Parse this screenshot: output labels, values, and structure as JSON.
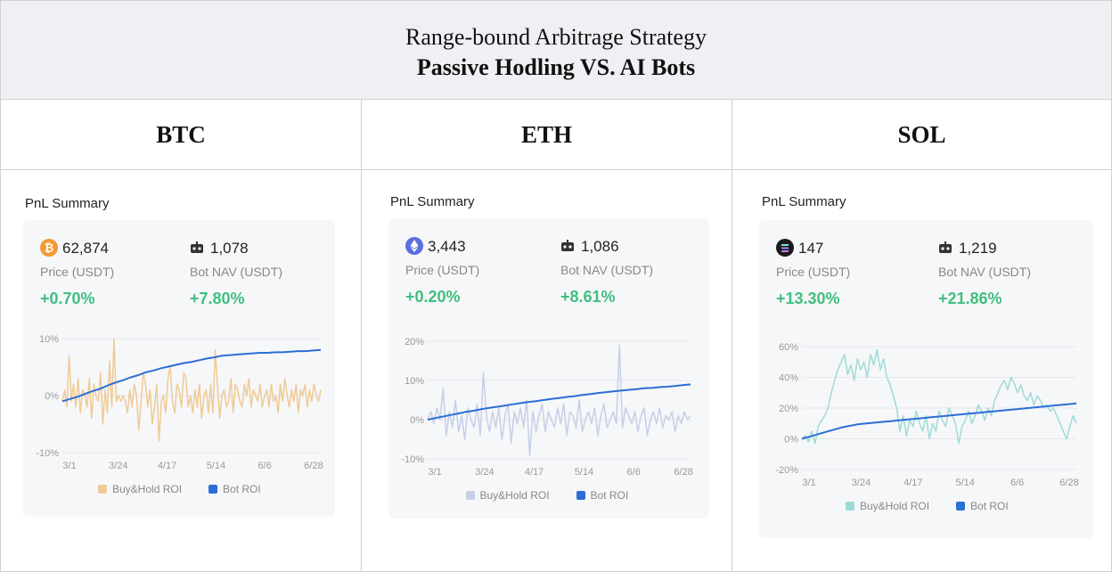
{
  "header": {
    "title": "Range-bound Arbitrage Strategy",
    "subtitle": "Passive Hodling VS. AI Bots"
  },
  "columns": [
    {
      "name": "BTC",
      "summary_title": "PnL Summary",
      "icon": "bitcoin-icon",
      "coin_color": "#f29a33",
      "price": "62,874",
      "price_label": "Price (USDT)",
      "price_change": "+0.70%",
      "bot_nav": "1,078",
      "bot_label": "Bot NAV (USDT)",
      "bot_change": "+7.80%"
    },
    {
      "name": "ETH",
      "summary_title": "PnL Summary",
      "icon": "ethereum-icon",
      "coin_color": "#5a6fe0",
      "price": "3,443",
      "price_label": "Price (USDT)",
      "price_change": "+0.20%",
      "bot_nav": "1,086",
      "bot_label": "Bot NAV (USDT)",
      "bot_change": "+8.61%"
    },
    {
      "name": "SOL",
      "summary_title": "PnL Summary",
      "icon": "solana-icon",
      "coin_color": "#1a1a1a",
      "price": "147",
      "price_label": "Price (USDT)",
      "price_change": "+13.30%",
      "bot_nav": "1,219",
      "bot_label": "Bot NAV (USDT)",
      "bot_change": "+21.86%"
    }
  ],
  "chart_data": [
    {
      "type": "line",
      "title": "BTC",
      "x_ticks": [
        "3/1",
        "3/24",
        "4/17",
        "5/14",
        "6/6",
        "6/28"
      ],
      "y_ticks": [
        "10%",
        "0%",
        "-10%"
      ],
      "ylim": [
        -10,
        10
      ],
      "grid": true,
      "legend": "bottom",
      "series": [
        {
          "name": "Buy&Hold ROI",
          "color": "#efcb95",
          "values": [
            -1,
            1,
            -2,
            7,
            -1,
            2,
            -2,
            3,
            -3,
            1,
            0,
            -2,
            3,
            -4,
            2,
            0,
            -1,
            4,
            -5,
            1,
            -3,
            6,
            -2,
            10,
            -1,
            0,
            -1,
            0,
            -1,
            -3,
            1,
            -2,
            2,
            0,
            -6,
            -1,
            4,
            2,
            -2,
            1,
            -5,
            -2,
            2,
            -8,
            -1,
            0,
            -3,
            3,
            5,
            -1,
            -3,
            2,
            1,
            -2,
            4,
            3,
            -2,
            0,
            -3,
            1,
            -2,
            2,
            -4,
            0,
            1,
            -3,
            2,
            -3,
            8,
            2,
            -4,
            0,
            1,
            -2,
            -1,
            3,
            -3,
            2,
            1,
            -1,
            -2,
            2,
            0,
            3,
            -2,
            1,
            0,
            -1,
            2,
            -2,
            0,
            1,
            -2,
            2,
            -1,
            0,
            -3,
            2,
            -1,
            3,
            0,
            -2,
            1,
            -1,
            2,
            -3,
            1,
            0,
            2,
            -2,
            1,
            -1,
            2,
            0,
            -1,
            1
          ]
        },
        {
          "name": "Bot ROI",
          "color": "#2b6ed6",
          "values": [
            -1,
            -0.6,
            -0.2,
            0.3,
            0.8,
            1.2,
            1.8,
            2.3,
            2.7,
            3.2,
            3.6,
            4.1,
            4.4,
            4.8,
            5.1,
            5.4,
            5.7,
            5.9,
            6.2,
            6.5,
            6.7,
            7.0,
            7.1,
            7.2,
            7.3,
            7.4,
            7.5,
            7.5,
            7.6,
            7.6,
            7.7,
            7.8,
            7.8,
            7.9,
            8.0
          ]
        }
      ]
    },
    {
      "type": "line",
      "title": "ETH",
      "x_ticks": [
        "3/1",
        "3/24",
        "4/17",
        "5/14",
        "6/6",
        "6/28"
      ],
      "y_ticks": [
        "20%",
        "10%",
        "0%",
        "-10%"
      ],
      "ylim": [
        -10,
        20
      ],
      "grid": true,
      "legend": "bottom",
      "series": [
        {
          "name": "Buy&Hold ROI",
          "color": "#c5cfe8",
          "values": [
            0,
            2,
            -1,
            3,
            0,
            8,
            -4,
            2,
            -2,
            5,
            -3,
            1,
            -5,
            3,
            0,
            -2,
            4,
            -4,
            12,
            1,
            -3,
            2,
            -2,
            3,
            -5,
            1,
            4,
            -6,
            2,
            -1,
            3,
            -2,
            5,
            -9,
            2,
            -3,
            1,
            4,
            -3,
            2,
            0,
            -2,
            3,
            -1,
            4,
            -4,
            2,
            1,
            -2,
            5,
            -3,
            0,
            2,
            -1,
            3,
            -4,
            1,
            4,
            -2,
            0,
            2,
            -1,
            19,
            -2,
            3,
            1,
            -1,
            2,
            -3,
            1,
            3,
            -4,
            0,
            2,
            -1,
            3,
            -2,
            1,
            0,
            2,
            -3,
            1,
            -1,
            2,
            0,
            1
          ]
        },
        {
          "name": "Bot ROI",
          "color": "#2b6ed6",
          "values": [
            0,
            0.4,
            0.8,
            1.2,
            1.6,
            2.0,
            2.3,
            2.7,
            3.0,
            3.3,
            3.6,
            3.9,
            4.2,
            4.5,
            4.7,
            5.0,
            5.3,
            5.5,
            5.8,
            6.0,
            6.3,
            6.5,
            6.8,
            7.0,
            7.2,
            7.4,
            7.6,
            7.8,
            8.0,
            8.1,
            8.3,
            8.4,
            8.6,
            8.8,
            9.0
          ]
        }
      ]
    },
    {
      "type": "line",
      "title": "SOL",
      "x_ticks": [
        "3/1",
        "3/24",
        "4/17",
        "5/14",
        "6/6",
        "6/28"
      ],
      "y_ticks": [
        "60%",
        "40%",
        "20%",
        "0%",
        "-20%"
      ],
      "ylim": [
        -20,
        60
      ],
      "grid": true,
      "legend": "bottom",
      "series": [
        {
          "name": "Buy&Hold ROI",
          "color": "#9edbd8",
          "values": [
            0,
            2,
            -2,
            5,
            -3,
            8,
            12,
            15,
            20,
            30,
            38,
            45,
            50,
            55,
            42,
            48,
            38,
            52,
            45,
            50,
            40,
            55,
            48,
            58,
            45,
            52,
            40,
            35,
            28,
            20,
            5,
            15,
            2,
            12,
            8,
            18,
            10,
            5,
            15,
            0,
            10,
            5,
            18,
            12,
            8,
            20,
            15,
            10,
            -3,
            8,
            12,
            18,
            10,
            15,
            22,
            18,
            12,
            20,
            15,
            25,
            30,
            35,
            38,
            32,
            40,
            36,
            30,
            35,
            28,
            25,
            30,
            22,
            28,
            25,
            20,
            22,
            18,
            20,
            15,
            10,
            5,
            0,
            8,
            15,
            10
          ]
        },
        {
          "name": "Bot ROI",
          "color": "#2b6ed6",
          "values": [
            0,
            1.5,
            3,
            4.5,
            6,
            7.5,
            8.5,
            9.5,
            10,
            10.5,
            11,
            11.5,
            12,
            12.5,
            13,
            13.5,
            14,
            14.5,
            15,
            15.5,
            16,
            16.5,
            17,
            17.5,
            18,
            18.5,
            19,
            19.5,
            20,
            20.5,
            21,
            21.5,
            22,
            22.5,
            23
          ]
        }
      ]
    }
  ]
}
